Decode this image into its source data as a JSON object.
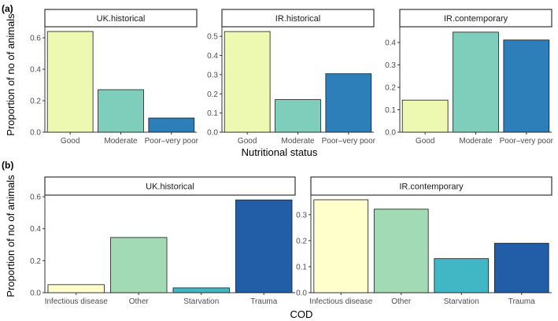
{
  "panel_labels": [
    "(a)",
    "(b)"
  ],
  "chart_data": [
    {
      "type": "bar",
      "panel": "(a)",
      "strip": "UK.historical",
      "ylabel": "Proportion of no of animals",
      "xlabel": "Nutritional status",
      "categories": [
        "Good",
        "Moderate",
        "Poor–very poor"
      ],
      "values": [
        0.64,
        0.27,
        0.09
      ],
      "colors": [
        "#edf8b1",
        "#7fcdbb",
        "#2c7fb8"
      ],
      "ylim": [
        0,
        0.67
      ],
      "yticks": [
        0.0,
        0.2,
        0.4,
        0.6
      ],
      "ytick_labels": [
        "0.0",
        "0.2",
        "0.4",
        "0.6"
      ]
    },
    {
      "type": "bar",
      "panel": "(a)",
      "strip": "IR.historical",
      "categories": [
        "Good",
        "Moderate",
        "Poor–very poor"
      ],
      "values": [
        0.525,
        0.17,
        0.305
      ],
      "colors": [
        "#edf8b1",
        "#7fcdbb",
        "#2c7fb8"
      ],
      "ylim": [
        0,
        0.55
      ],
      "yticks": [
        0.0,
        0.1,
        0.2,
        0.3,
        0.4,
        0.5
      ],
      "ytick_labels": [
        "0.0",
        "0.1",
        "0.2",
        "0.3",
        "0.4",
        "0.5"
      ]
    },
    {
      "type": "bar",
      "panel": "(a)",
      "strip": "IR.contemporary",
      "categories": [
        "Good",
        "Moderate",
        "Poor–very poor"
      ],
      "values": [
        0.143,
        0.446,
        0.411
      ],
      "colors": [
        "#edf8b1",
        "#7fcdbb",
        "#2c7fb8"
      ],
      "ylim": [
        0,
        0.47
      ],
      "yticks": [
        0.0,
        0.1,
        0.2,
        0.3,
        0.4
      ],
      "ytick_labels": [
        "0.0",
        "0.1",
        "0.2",
        "0.3",
        "0.4"
      ]
    },
    {
      "type": "bar",
      "panel": "(b)",
      "strip": "UK.historical",
      "ylabel": "Proportion of no of animals",
      "xlabel": "COD",
      "categories": [
        "Infectious disease",
        "Other",
        "Starvation",
        "Trauma"
      ],
      "values": [
        0.05,
        0.345,
        0.03,
        0.58
      ],
      "colors": [
        "#ffffcc",
        "#a1dab4",
        "#41b6c4",
        "#225ea8"
      ],
      "ylim": [
        0,
        0.61
      ],
      "yticks": [
        0.0,
        0.2,
        0.4,
        0.6
      ],
      "ytick_labels": [
        "0.0",
        "0.2",
        "0.4",
        "0.6"
      ]
    },
    {
      "type": "bar",
      "panel": "(b)",
      "strip": "IR.contemporary",
      "categories": [
        "Infectious disease",
        "Other",
        "Starvation",
        "Trauma"
      ],
      "values": [
        0.357,
        0.321,
        0.131,
        0.19
      ],
      "colors": [
        "#ffffcc",
        "#a1dab4",
        "#41b6c4",
        "#225ea8"
      ],
      "ylim": [
        0,
        0.375
      ],
      "yticks": [
        0.0,
        0.1,
        0.2,
        0.3
      ],
      "ytick_labels": [
        "0.0",
        "0.1",
        "0.2",
        "0.3"
      ]
    }
  ]
}
